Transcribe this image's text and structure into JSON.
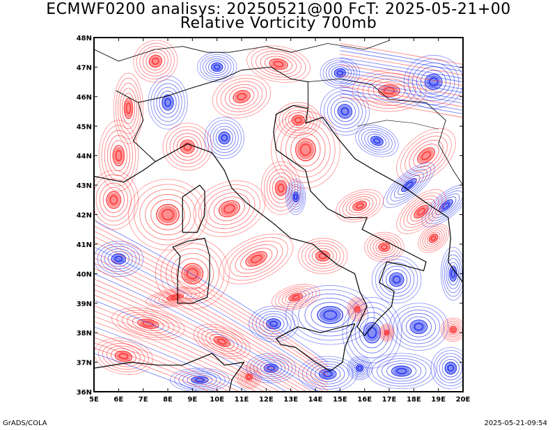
{
  "header": {
    "title_line1": "ECMWF0200 analisys: 20250521@00 FcT: 2025-05-21+00",
    "title_line2": "Relative Vorticity 700mb"
  },
  "map": {
    "lon_range": [
      5,
      20
    ],
    "lat_range": [
      36,
      48
    ],
    "lon_labels": [
      "5E",
      "6E",
      "7E",
      "8E",
      "9E",
      "10E",
      "11E",
      "12E",
      "13E",
      "14E",
      "15E",
      "16E",
      "17E",
      "18E",
      "19E",
      "20E"
    ],
    "lat_labels": [
      "36N",
      "37N",
      "38N",
      "39N",
      "40N",
      "41N",
      "42N",
      "43N",
      "44N",
      "45N",
      "46N",
      "47N",
      "48N"
    ],
    "positive_color": "#ff3333",
    "negative_color": "#2233ee",
    "coastline_color": "#000000"
  },
  "footer": {
    "left": "GrADS/COLA",
    "right": "2025-05-21-09:54"
  }
}
